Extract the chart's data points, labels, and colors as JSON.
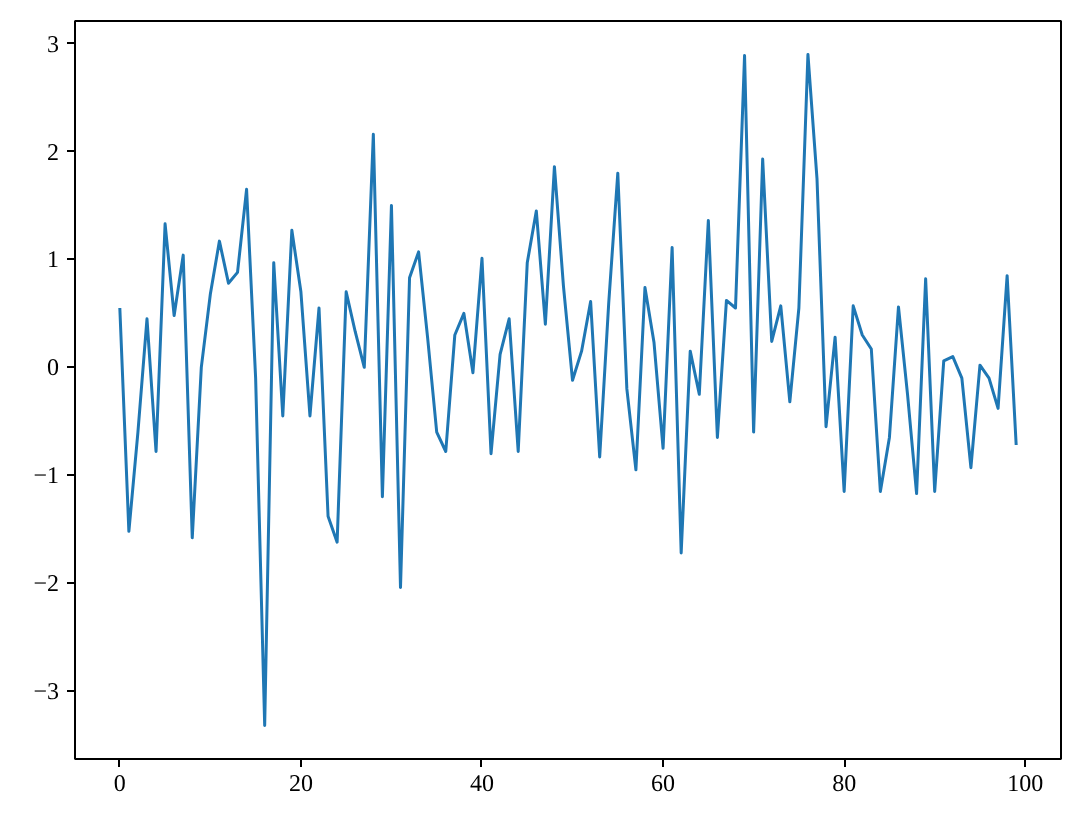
{
  "chart_data": {
    "type": "line",
    "x": [
      0,
      1,
      2,
      3,
      4,
      5,
      6,
      7,
      8,
      9,
      10,
      11,
      12,
      13,
      14,
      15,
      16,
      17,
      18,
      19,
      20,
      21,
      22,
      23,
      24,
      25,
      26,
      27,
      28,
      29,
      30,
      31,
      32,
      33,
      34,
      35,
      36,
      37,
      38,
      39,
      40,
      41,
      42,
      43,
      44,
      45,
      46,
      47,
      48,
      49,
      50,
      51,
      52,
      53,
      54,
      55,
      56,
      57,
      58,
      59,
      60,
      61,
      62,
      63,
      64,
      65,
      66,
      67,
      68,
      69,
      70,
      71,
      72,
      73,
      74,
      75,
      76,
      77,
      78,
      79,
      80,
      81,
      82,
      83,
      84,
      85,
      86,
      87,
      88,
      89,
      90,
      91,
      92,
      93,
      94,
      95,
      96,
      97,
      98,
      99
    ],
    "series": [
      {
        "color": "#1f77b4",
        "values": [
          0.55,
          -1.52,
          -0.6,
          0.45,
          -0.78,
          1.33,
          0.48,
          1.04,
          -1.58,
          0.0,
          0.68,
          1.17,
          0.78,
          0.88,
          1.65,
          -0.1,
          -3.32,
          0.97,
          -0.45,
          1.27,
          0.7,
          -0.45,
          0.55,
          -1.38,
          -1.62,
          0.7,
          0.33,
          0.0,
          2.16,
          -1.2,
          1.5,
          -2.04,
          0.83,
          1.07,
          0.27,
          -0.6,
          -0.78,
          0.3,
          0.5,
          -0.05,
          1.01,
          -0.8,
          0.12,
          0.45,
          -0.78,
          0.97,
          1.45,
          0.4,
          1.86,
          0.75,
          -0.12,
          0.15,
          0.61,
          -0.83,
          0.6,
          1.8,
          -0.2,
          -0.95,
          0.74,
          0.23,
          -0.75,
          1.11,
          -1.72,
          0.15,
          -0.25,
          1.36,
          -0.65,
          0.62,
          0.55,
          2.89,
          -0.6,
          1.93,
          0.24,
          0.57,
          -0.32,
          0.55,
          2.9,
          1.75,
          -0.55,
          0.28,
          -1.15,
          0.57,
          0.3,
          0.17,
          -1.15,
          -0.65,
          0.56,
          -0.25,
          -1.17,
          0.82,
          -1.15,
          0.06,
          0.1,
          -0.1,
          -0.93,
          0.02,
          -0.1,
          -0.38,
          0.85,
          -0.72
        ]
      }
    ],
    "xlim": [
      -4.95,
      103.95
    ],
    "ylim": [
      -3.63,
      3.21
    ],
    "xticks": [
      0,
      20,
      40,
      60,
      80,
      100
    ],
    "yticks": [
      {
        "value": -3,
        "label": "−3"
      },
      {
        "value": -2,
        "label": "−2"
      },
      {
        "value": -1,
        "label": "−1"
      },
      0,
      1,
      2,
      3
    ]
  }
}
